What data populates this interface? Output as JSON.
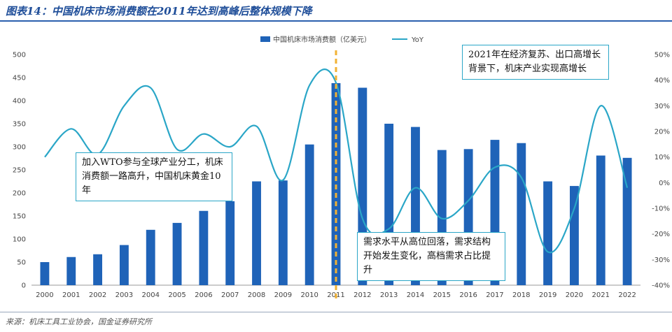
{
  "figure": {
    "title": "图表14：中国机床市场消费额在2011年达到高峰后整体规模下降",
    "source": "来源：机床工具工业协会，国金证券研究所"
  },
  "annotations": {
    "wto": "加入WTO参与全球产业分工，机床消费额一路高升，中国机床黄金10年",
    "peak_2011": "需求水平从高位回落，需求结构开始发生变化，高档需求占比提升",
    "recovery_2021": "2021年在经济复苏、出口高增长背景下，机床产业实现高增长"
  },
  "colors": {
    "bar": "#1f63b8",
    "line": "#2aa6c7",
    "marker_line": "#f2b233",
    "title": "#1f4e99"
  },
  "chart_data": {
    "type": "bar",
    "categories": [
      "2000",
      "2001",
      "2002",
      "2003",
      "2004",
      "2005",
      "2006",
      "2007",
      "2008",
      "2009",
      "2010",
      "2011",
      "2012",
      "2013",
      "2014",
      "2015",
      "2016",
      "2017",
      "2018",
      "2019",
      "2020",
      "2021",
      "2022"
    ],
    "series": [
      {
        "name": "中国机床市场消费额（亿美元）",
        "type": "bar",
        "axis": "left",
        "values": [
          50,
          61,
          67,
          87,
          120,
          135,
          161,
          182,
          225,
          227,
          305,
          438,
          428,
          350,
          343,
          293,
          295,
          315,
          308,
          225,
          215,
          281,
          276
        ]
      },
      {
        "name": "YoY",
        "type": "line",
        "axis": "right",
        "values": [
          10,
          21,
          11,
          30,
          37,
          13,
          19,
          14,
          22,
          1,
          38,
          39,
          -14,
          -18,
          -2,
          -14,
          -7,
          6,
          2,
          -27,
          -10,
          30,
          -2
        ]
      }
    ],
    "y_left": {
      "min": 0,
      "max": 500,
      "step": 50,
      "ticks": [
        "0",
        "50",
        "100",
        "150",
        "200",
        "250",
        "300",
        "350",
        "400",
        "450",
        "500"
      ]
    },
    "y_right": {
      "min": -40,
      "max": 50,
      "step": 10,
      "ticks": [
        "-40%",
        "-30%",
        "-20%",
        "-10%",
        "0%",
        "10%",
        "20%",
        "30%",
        "40%",
        "50%"
      ]
    },
    "reference_line": {
      "category": "2011",
      "style": "dashed"
    },
    "legend": {
      "position": "top-center"
    },
    "grid": false
  }
}
